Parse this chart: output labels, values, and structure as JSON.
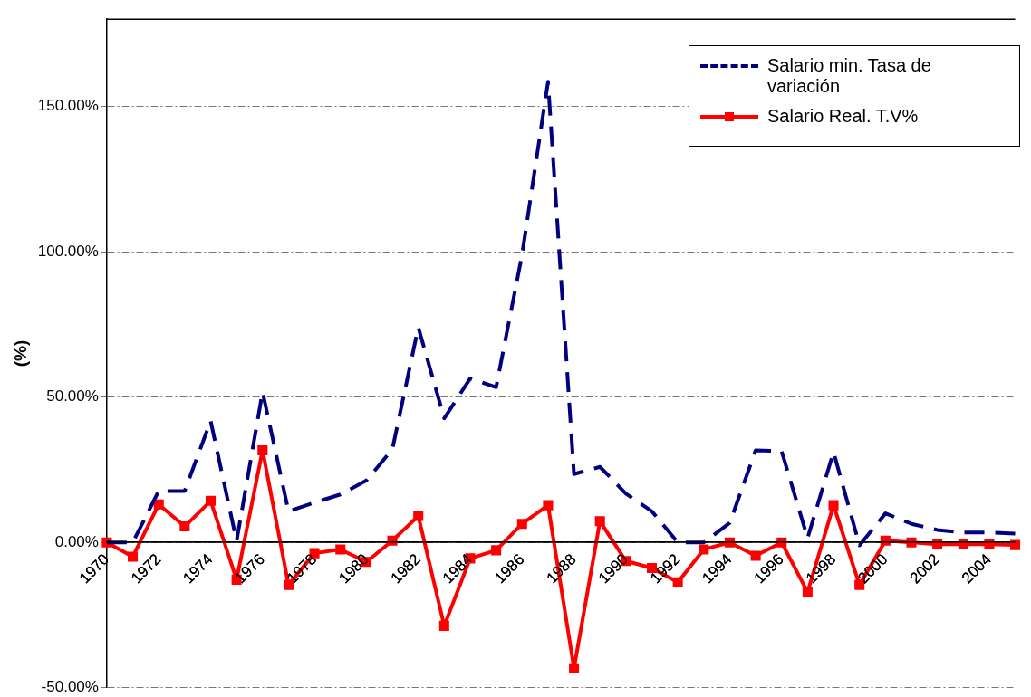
{
  "chart_data": {
    "type": "line",
    "ylabel": "(%)",
    "categories": [
      "1970",
      null,
      "1972",
      null,
      "1974",
      null,
      "1976",
      null,
      "1978",
      null,
      "1980",
      null,
      "1982",
      null,
      "1984",
      null,
      "1986",
      null,
      "1988",
      null,
      "1990",
      null,
      "1992",
      null,
      "1994",
      null,
      "1996",
      null,
      "1998",
      null,
      "2000",
      null,
      "2002",
      null,
      "2004",
      null
    ],
    "series": [
      {
        "name": "Salario min.  Tasa de variación",
        "color": "#000080",
        "line_style": "dashed",
        "marker": "none",
        "values": [
          0,
          0,
          17.7,
          17.7,
          41.8,
          0.5,
          51.8,
          10.7,
          13.7,
          16.5,
          21.3,
          32,
          74,
          42.7,
          56.4,
          53.4,
          99,
          158.5,
          23.5,
          26,
          16.8,
          10.7,
          0,
          0,
          6.7,
          31.7,
          31.4,
          1.5,
          31.1,
          -1,
          10,
          6.4,
          4.3,
          3.4,
          3.4,
          3
        ]
      },
      {
        "name": "Salario Real. T.V%",
        "color": "#ff0000",
        "line_style": "solid",
        "marker": "square",
        "values": [
          0,
          -4.9,
          13.1,
          5.5,
          14.3,
          -12.8,
          31.7,
          -14.6,
          -3.7,
          -2.4,
          -6.7,
          0.6,
          9.1,
          -28.7,
          -5.5,
          -2.7,
          6.4,
          12.8,
          -43.3,
          7.3,
          -6.4,
          -8.8,
          -13.7,
          -2.4,
          0,
          -4.6,
          0,
          -17.1,
          12.8,
          -14.6,
          0.6,
          0,
          -0.6,
          -0.6,
          -0.6,
          -0.9
        ]
      }
    ],
    "ylim": [
      -50,
      180
    ],
    "yticks": [
      {
        "value": -50,
        "label": "-50.00%"
      },
      {
        "value": 0,
        "label": "0.00%"
      },
      {
        "value": 50,
        "label": "50.00%"
      },
      {
        "value": 100,
        "label": "100.00%"
      },
      {
        "value": 150,
        "label": "150.00%"
      }
    ],
    "grid": "y",
    "legend": "top right"
  }
}
